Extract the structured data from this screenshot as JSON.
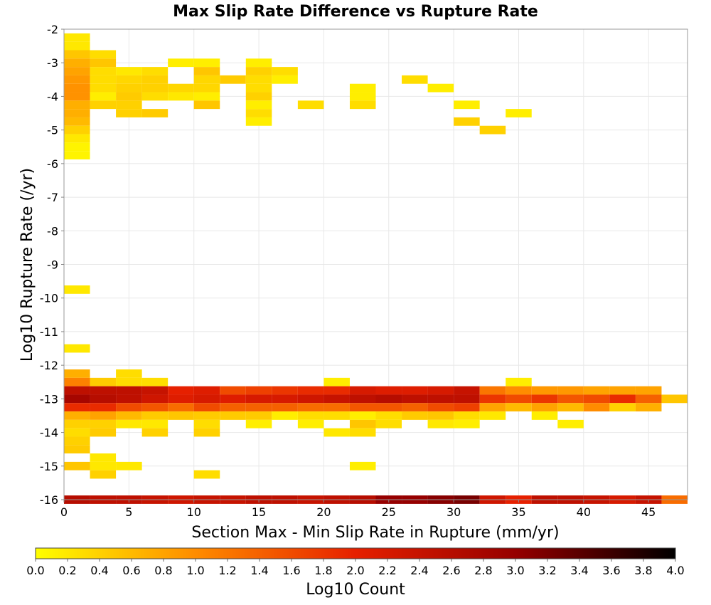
{
  "chart_data": {
    "type": "heatmap",
    "title": "Max Slip Rate Difference vs Rupture Rate",
    "xlabel": "Section Max - Min Slip Rate in Rupture (mm/yr)",
    "ylabel": "Log10 Rupture Rate (/yr)",
    "xlim": [
      0,
      48
    ],
    "ylim": [
      -16,
      -2
    ],
    "x_bin_width": 2,
    "y_bin_width": 0.25,
    "x_ticks": [
      "0",
      "5",
      "10",
      "15",
      "20",
      "25",
      "30",
      "35",
      "40",
      "45"
    ],
    "y_ticks": [
      "-16",
      "-15",
      "-14",
      "-13",
      "-12",
      "-11",
      "-10",
      "-9",
      "-8",
      "-7",
      "-6",
      "-5",
      "-4",
      "-3",
      "-2"
    ],
    "grid": true,
    "colorbar": {
      "label": "Log10 Count",
      "min": 0.0,
      "max": 4.0,
      "tick_labels": [
        "0.0",
        "0.2",
        "0.4",
        "0.6",
        "0.8",
        "1.0",
        "1.2",
        "1.4",
        "1.6",
        "1.8",
        "2.0",
        "2.2",
        "2.4",
        "2.6",
        "2.8",
        "3.0",
        "3.2",
        "3.4",
        "3.6",
        "3.8",
        "4.0"
      ],
      "colors": [
        "#ffff00",
        "#ff8c00",
        "#e62000",
        "#960000",
        "#000000"
      ]
    },
    "cells": [
      [
        1,
        -2.25,
        0.2
      ],
      [
        1,
        -2.5,
        0.2
      ],
      [
        1,
        -2.75,
        0.5
      ],
      [
        1,
        -3.0,
        0.7
      ],
      [
        1,
        -3.25,
        0.8
      ],
      [
        1,
        -3.5,
        0.9
      ],
      [
        1,
        -3.75,
        0.95
      ],
      [
        1,
        -4.0,
        0.95
      ],
      [
        1,
        -4.25,
        0.7
      ],
      [
        1,
        -4.5,
        0.7
      ],
      [
        1,
        -4.75,
        0.6
      ],
      [
        1,
        -5.0,
        0.4
      ],
      [
        1,
        -5.25,
        0.2
      ],
      [
        1,
        -5.5,
        0.1
      ],
      [
        1,
        -5.75,
        0.1
      ],
      [
        3,
        -2.75,
        0.3
      ],
      [
        3,
        -3.0,
        0.5
      ],
      [
        3,
        -3.25,
        0.3
      ],
      [
        3,
        -3.5,
        0.3
      ],
      [
        3,
        -3.75,
        0.3
      ],
      [
        3,
        -4.0,
        0.15
      ],
      [
        3,
        -4.25,
        0.4
      ],
      [
        5,
        -3.25,
        0.2
      ],
      [
        5,
        -3.5,
        0.35
      ],
      [
        5,
        -3.75,
        0.4
      ],
      [
        5,
        -4.0,
        0.45
      ],
      [
        5,
        -4.25,
        0.4
      ],
      [
        5,
        -4.5,
        0.4
      ],
      [
        7,
        -3.25,
        0.3
      ],
      [
        7,
        -3.5,
        0.4
      ],
      [
        7,
        -3.75,
        0.4
      ],
      [
        7,
        -4.0,
        0.3
      ],
      [
        7,
        -4.5,
        0.45
      ],
      [
        9,
        -3.0,
        0.15
      ],
      [
        9,
        -3.75,
        0.35
      ],
      [
        9,
        -4.0,
        0.2
      ],
      [
        11,
        -3.0,
        0.15
      ],
      [
        11,
        -3.25,
        0.5
      ],
      [
        11,
        -3.5,
        0.35
      ],
      [
        11,
        -3.75,
        0.35
      ],
      [
        11,
        -4.0,
        0.15
      ],
      [
        11,
        -4.25,
        0.5
      ],
      [
        13,
        -3.5,
        0.45
      ],
      [
        15,
        -3.0,
        0.15
      ],
      [
        15,
        -3.25,
        0.4
      ],
      [
        15,
        -3.5,
        0.3
      ],
      [
        15,
        -3.75,
        0.3
      ],
      [
        15,
        -4.0,
        0.4
      ],
      [
        15,
        -4.25,
        0.15
      ],
      [
        15,
        -4.5,
        0.3
      ],
      [
        15,
        -4.75,
        0.15
      ],
      [
        17,
        -3.25,
        0.3
      ],
      [
        17,
        -3.5,
        0.15
      ],
      [
        19,
        -4.25,
        0.3
      ],
      [
        23,
        -3.75,
        0.15
      ],
      [
        23,
        -4.0,
        0.15
      ],
      [
        23,
        -4.25,
        0.3
      ],
      [
        27,
        -3.5,
        0.3
      ],
      [
        29,
        -3.75,
        0.15
      ],
      [
        31,
        -4.25,
        0.15
      ],
      [
        31,
        -4.75,
        0.4
      ],
      [
        33,
        -5.0,
        0.4
      ],
      [
        35,
        -4.5,
        0.15
      ],
      [
        1,
        -9.75,
        0.2
      ],
      [
        1,
        -11.5,
        0.2
      ],
      [
        1,
        -12.25,
        0.7
      ],
      [
        1,
        -12.5,
        1.1
      ],
      [
        1,
        -12.75,
        2.5
      ],
      [
        1,
        -13.0,
        2.8
      ],
      [
        1,
        -13.25,
        1.9
      ],
      [
        1,
        -13.5,
        0.7
      ],
      [
        1,
        -13.75,
        0.4
      ],
      [
        1,
        -14.0,
        0.3
      ],
      [
        1,
        -14.25,
        0.4
      ],
      [
        1,
        -14.5,
        0.45
      ],
      [
        1,
        -15.0,
        0.5
      ],
      [
        3,
        -12.5,
        0.45
      ],
      [
        3,
        -12.75,
        2.5
      ],
      [
        3,
        -13.0,
        2.6
      ],
      [
        3,
        -13.25,
        1.9
      ],
      [
        3,
        -13.5,
        0.8
      ],
      [
        3,
        -13.75,
        0.4
      ],
      [
        3,
        -14.0,
        0.45
      ],
      [
        3,
        -14.75,
        0.2
      ],
      [
        3,
        -15.0,
        0.2
      ],
      [
        3,
        -15.25,
        0.4
      ],
      [
        5,
        -12.25,
        0.3
      ],
      [
        5,
        -12.5,
        0.3
      ],
      [
        5,
        -12.75,
        2.5
      ],
      [
        5,
        -13.0,
        2.5
      ],
      [
        5,
        -13.25,
        1.6
      ],
      [
        5,
        -13.5,
        0.6
      ],
      [
        5,
        -13.75,
        0.2
      ],
      [
        5,
        -15.0,
        0.2
      ],
      [
        7,
        -12.5,
        0.3
      ],
      [
        7,
        -12.75,
        2.4
      ],
      [
        7,
        -13.0,
        2.3
      ],
      [
        7,
        -13.25,
        1.5
      ],
      [
        7,
        -13.5,
        0.45
      ],
      [
        7,
        -13.75,
        0.2
      ],
      [
        7,
        -14.0,
        0.4
      ],
      [
        9,
        -12.75,
        2.0
      ],
      [
        9,
        -13.0,
        2.1
      ],
      [
        9,
        -13.25,
        1.3
      ],
      [
        9,
        -13.5,
        0.5
      ],
      [
        11,
        -12.75,
        2.1
      ],
      [
        11,
        -13.0,
        2.2
      ],
      [
        11,
        -13.25,
        1.6
      ],
      [
        11,
        -13.5,
        0.45
      ],
      [
        11,
        -13.75,
        0.3
      ],
      [
        11,
        -14.0,
        0.4
      ],
      [
        11,
        -15.25,
        0.3
      ],
      [
        13,
        -12.75,
        1.6
      ],
      [
        13,
        -13.0,
        2.1
      ],
      [
        13,
        -13.25,
        1.4
      ],
      [
        13,
        -13.5,
        0.45
      ],
      [
        15,
        -12.75,
        1.7
      ],
      [
        15,
        -13.0,
        2.2
      ],
      [
        15,
        -13.25,
        1.4
      ],
      [
        15,
        -13.5,
        0.45
      ],
      [
        15,
        -13.75,
        0.15
      ],
      [
        17,
        -12.75,
        1.8
      ],
      [
        17,
        -13.0,
        2.2
      ],
      [
        17,
        -13.25,
        1.4
      ],
      [
        17,
        -13.5,
        0.15
      ],
      [
        19,
        -12.75,
        1.9
      ],
      [
        19,
        -13.0,
        2.3
      ],
      [
        19,
        -13.25,
        1.3
      ],
      [
        19,
        -13.5,
        0.3
      ],
      [
        19,
        -13.75,
        0.15
      ],
      [
        21,
        -12.5,
        0.15
      ],
      [
        21,
        -12.75,
        1.9
      ],
      [
        21,
        -13.0,
        2.4
      ],
      [
        21,
        -13.25,
        1.3
      ],
      [
        21,
        -13.5,
        0.3
      ],
      [
        21,
        -14.0,
        0.2
      ],
      [
        23,
        -12.75,
        2.2
      ],
      [
        23,
        -13.0,
        2.5
      ],
      [
        23,
        -13.25,
        1.5
      ],
      [
        23,
        -13.5,
        0.15
      ],
      [
        23,
        -13.75,
        0.5
      ],
      [
        23,
        -14.0,
        0.3
      ],
      [
        23,
        -15.0,
        0.15
      ],
      [
        25,
        -12.75,
        2.1
      ],
      [
        25,
        -13.0,
        2.6
      ],
      [
        25,
        -13.25,
        1.5
      ],
      [
        25,
        -13.5,
        0.3
      ],
      [
        25,
        -13.75,
        0.3
      ],
      [
        27,
        -12.75,
        2.1
      ],
      [
        27,
        -13.0,
        2.5
      ],
      [
        27,
        -13.25,
        1.4
      ],
      [
        27,
        -13.5,
        0.45
      ],
      [
        29,
        -12.75,
        2.2
      ],
      [
        29,
        -13.0,
        2.5
      ],
      [
        29,
        -13.25,
        1.6
      ],
      [
        29,
        -13.5,
        0.5
      ],
      [
        29,
        -13.75,
        0.2
      ],
      [
        31,
        -12.75,
        2.4
      ],
      [
        31,
        -13.0,
        2.5
      ],
      [
        31,
        -13.25,
        1.7
      ],
      [
        31,
        -13.5,
        0.3
      ],
      [
        31,
        -13.75,
        0.15
      ],
      [
        33,
        -12.75,
        1.2
      ],
      [
        33,
        -13.0,
        1.8
      ],
      [
        33,
        -13.25,
        0.8
      ],
      [
        33,
        -13.5,
        0.2
      ],
      [
        35,
        -12.5,
        0.15
      ],
      [
        35,
        -12.75,
        1.0
      ],
      [
        35,
        -13.0,
        1.6
      ],
      [
        35,
        -13.25,
        0.6
      ],
      [
        37,
        -12.75,
        0.9
      ],
      [
        37,
        -13.0,
        1.8
      ],
      [
        37,
        -13.25,
        0.8
      ],
      [
        37,
        -13.5,
        0.15
      ],
      [
        39,
        -12.75,
        0.9
      ],
      [
        39,
        -13.0,
        1.5
      ],
      [
        39,
        -13.25,
        0.6
      ],
      [
        39,
        -13.75,
        0.15
      ],
      [
        41,
        -12.75,
        0.8
      ],
      [
        41,
        -13.0,
        1.6
      ],
      [
        41,
        -13.25,
        1.0
      ],
      [
        43,
        -12.75,
        0.8
      ],
      [
        43,
        -13.0,
        1.9
      ],
      [
        43,
        -13.25,
        0.4
      ],
      [
        45,
        -12.75,
        0.8
      ],
      [
        45,
        -13.0,
        1.4
      ],
      [
        45,
        -13.25,
        0.7
      ],
      [
        47,
        -13.0,
        0.5
      ],
      [
        1,
        -16.0,
        2.6
      ],
      [
        3,
        -16.0,
        2.5
      ],
      [
        5,
        -16.0,
        2.5
      ],
      [
        7,
        -16.0,
        2.4
      ],
      [
        9,
        -16.0,
        2.3
      ],
      [
        11,
        -16.0,
        2.4
      ],
      [
        13,
        -16.0,
        2.4
      ],
      [
        15,
        -16.0,
        2.5
      ],
      [
        17,
        -16.0,
        2.5
      ],
      [
        19,
        -16.0,
        2.4
      ],
      [
        21,
        -16.0,
        2.5
      ],
      [
        23,
        -16.0,
        2.6
      ],
      [
        25,
        -16.0,
        3.0
      ],
      [
        27,
        -16.0,
        3.0
      ],
      [
        29,
        -16.0,
        3.1
      ],
      [
        31,
        -16.0,
        3.2
      ],
      [
        33,
        -16.0,
        2.3
      ],
      [
        35,
        -16.0,
        2.0
      ],
      [
        37,
        -16.0,
        2.5
      ],
      [
        39,
        -16.0,
        2.5
      ],
      [
        41,
        -16.0,
        2.4
      ],
      [
        43,
        -16.0,
        2.2
      ],
      [
        45,
        -16.0,
        2.4
      ],
      [
        47,
        -16.0,
        1.3
      ]
    ]
  }
}
